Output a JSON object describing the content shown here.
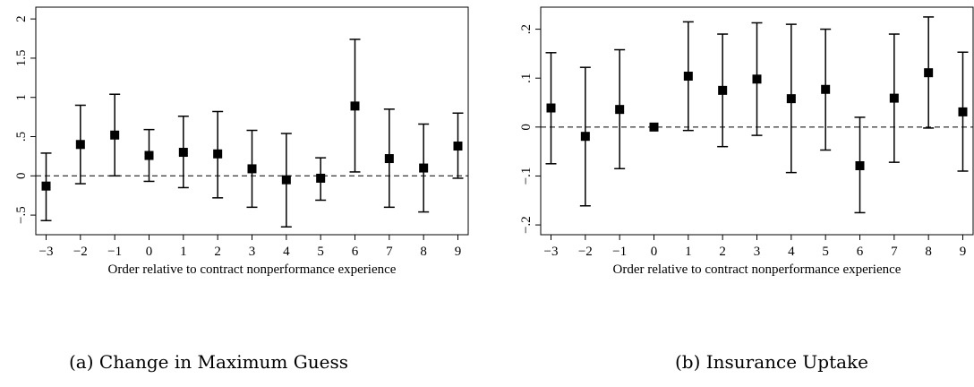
{
  "chart_data": [
    {
      "type": "scatter",
      "caption": "(a) Change in Maximum Guess",
      "xlabel": "Order relative to contract nonperformance experience",
      "ylabel": "",
      "x": [
        -3,
        -2,
        -1,
        0,
        1,
        2,
        3,
        4,
        5,
        6,
        7,
        8,
        9
      ],
      "x_tick_labels": [
        "−3",
        "−2",
        "−1",
        "0",
        "1",
        "2",
        "3",
        "4",
        "5",
        "6",
        "7",
        "8",
        "9"
      ],
      "y": [
        -0.13,
        0.4,
        0.52,
        0.26,
        0.3,
        0.28,
        0.09,
        -0.05,
        -0.03,
        0.89,
        0.22,
        0.1,
        0.38
      ],
      "y_low": [
        -0.57,
        -0.1,
        0.0,
        -0.07,
        -0.15,
        -0.28,
        -0.4,
        -0.65,
        -0.31,
        0.05,
        -0.4,
        -0.46,
        -0.03
      ],
      "y_high": [
        0.29,
        0.9,
        1.04,
        0.59,
        0.76,
        0.82,
        0.58,
        0.54,
        0.23,
        1.74,
        0.85,
        0.66,
        0.8
      ],
      "xlim": [
        -3.3,
        9.3
      ],
      "ylim": [
        -0.75,
        2.15
      ],
      "y_ticks": [
        -0.5,
        0,
        0.5,
        1,
        1.5,
        2
      ],
      "y_tick_labels": [
        "−.5",
        "0",
        ".5",
        "1",
        "1.5",
        "2"
      ],
      "reference_line": 0,
      "grid": false
    },
    {
      "type": "scatter",
      "caption": "(b) Insurance Uptake",
      "xlabel": "Order relative to contract nonperformance experience",
      "ylabel": "",
      "x": [
        -3,
        -2,
        -1,
        0,
        1,
        2,
        3,
        4,
        5,
        6,
        7,
        8,
        9
      ],
      "x_tick_labels": [
        "−3",
        "−2",
        "−1",
        "0",
        "1",
        "2",
        "3",
        "4",
        "5",
        "6",
        "7",
        "8",
        "9"
      ],
      "y": [
        0.039,
        -0.019,
        0.036,
        0.0,
        0.104,
        0.075,
        0.098,
        0.058,
        0.077,
        -0.079,
        0.059,
        0.111,
        0.031
      ],
      "y_low": [
        -0.075,
        -0.161,
        -0.085,
        0.0,
        -0.007,
        -0.04,
        -0.017,
        -0.093,
        -0.047,
        -0.175,
        -0.072,
        -0.002,
        -0.09
      ],
      "y_high": [
        0.152,
        0.122,
        0.158,
        0.0,
        0.215,
        0.19,
        0.213,
        0.21,
        0.2,
        0.02,
        0.19,
        0.225,
        0.153
      ],
      "xlim": [
        -3.3,
        9.3
      ],
      "ylim": [
        -0.22,
        0.245
      ],
      "y_ticks": [
        -0.2,
        -0.1,
        0,
        0.1,
        0.2
      ],
      "y_tick_labels": [
        "−.2",
        "−.1",
        "0",
        ".1",
        ".2"
      ],
      "reference_line": 0,
      "grid": false
    }
  ]
}
